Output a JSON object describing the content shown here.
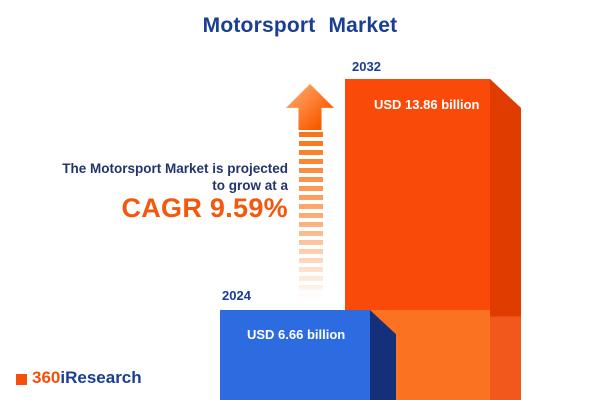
{
  "title": "Motorsport Market",
  "annotation": {
    "line1": "The Motorsport Market is projected",
    "line2": "to grow at a",
    "cagr": "CAGR 9.59%"
  },
  "bars": [
    {
      "year": "2024",
      "label": "USD 6.66 billion"
    },
    {
      "year": "2032",
      "label": "USD 13.86 billion"
    }
  ],
  "logo": {
    "prefix": "360",
    "suffix": "iResearch"
  },
  "colors": {
    "navy": "#1A3E92",
    "orange_bar_front": "#FA4A0A",
    "orange_bar_side": "#E03C00",
    "orange_bar_lower": "#FB7321",
    "blue_bar_front": "#2D6BE1",
    "blue_bar_side": "#14307A",
    "cagr_orange": "#F4570E",
    "arrow_orange": "#F97316"
  },
  "chart_data": {
    "type": "bar",
    "categories": [
      "2024",
      "2032"
    ],
    "values": [
      6.66,
      13.86
    ],
    "unit": "USD billion",
    "value_labels": [
      "USD 6.66 billion",
      "USD 13.86 billion"
    ],
    "title": "Motorsport Market",
    "cagr_percent": 9.59,
    "annotation": "The Motorsport Market is projected to grow at a CAGR 9.59%",
    "legend_position": "none",
    "grid": false,
    "bar_colors": [
      "#2D6BE1",
      "#FA4A0A"
    ]
  }
}
